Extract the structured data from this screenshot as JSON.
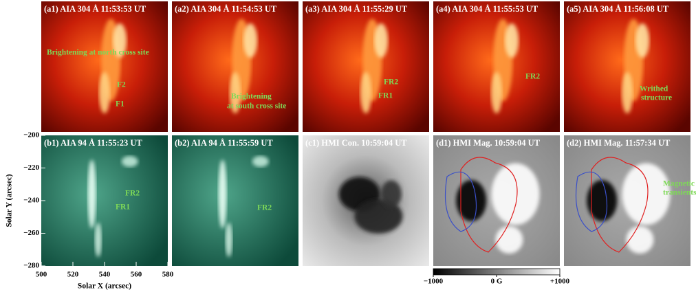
{
  "panels": [
    {
      "label": "(a1) AIA 304 Å 11:53:53 UT",
      "annotations": [
        "Brightening at north cross site",
        "F2",
        "F1"
      ]
    },
    {
      "label": "(a2) AIA 304 Å 11:54:53 UT",
      "annotations": [
        "Brightening",
        "at south cross site"
      ]
    },
    {
      "label": "(a3) AIA 304 Å 11:55:29 UT",
      "annotations": [
        "FR2",
        "FR1"
      ]
    },
    {
      "label": "(a4) AIA 304 Å 11:55:53 UT",
      "annotations": [
        "FR2"
      ]
    },
    {
      "label": "(a5) AIA 304 Å 11:56:08 UT",
      "annotations": [
        "Writhed",
        "structure"
      ]
    },
    {
      "label": "(b1) AIA 94 Å 11:55:23 UT",
      "annotations": [
        "FR2",
        "FR1"
      ]
    },
    {
      "label": "(b2) AIA 94 Å 11:55:59 UT",
      "annotations": [
        "FR2"
      ]
    },
    {
      "label": "(c1) HMI Con.  10:59:04 UT",
      "annotations": []
    },
    {
      "label": "(d1) HMI Mag.  10:59:04 UT",
      "annotations": []
    },
    {
      "label": "(d2) HMI Mag.  11:57:34 UT",
      "annotations": [
        "Magnetic",
        "transients"
      ]
    }
  ],
  "axes": {
    "xlabel": "Solar X (arcsec)",
    "ylabel": "Solar Y (arcsec)",
    "xlim": [
      500,
      580
    ],
    "ylim": [
      -280,
      -200
    ],
    "xticks": [
      500,
      520,
      540,
      560,
      580
    ],
    "yticks": [
      {
        "value": -200,
        "label": "−200"
      },
      {
        "value": -220,
        "label": "−220"
      },
      {
        "value": -240,
        "label": "−240"
      },
      {
        "value": -260,
        "label": "−260"
      },
      {
        "value": -280,
        "label": "−280"
      }
    ]
  },
  "colorbar": {
    "lim": [
      -1000,
      1000
    ],
    "ticks": [
      {
        "value": -1000,
        "label": "−1000"
      },
      {
        "value": 0,
        "label": "0 G"
      },
      {
        "value": 1000,
        "label": "+1000"
      }
    ]
  }
}
